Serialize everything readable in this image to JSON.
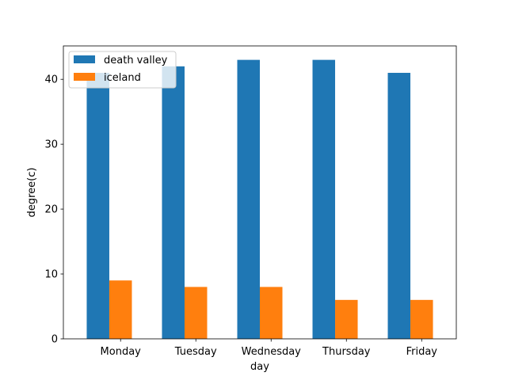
{
  "chart_data": {
    "type": "bar",
    "title": "",
    "xlabel": "day",
    "ylabel": "degree(c)",
    "categories": [
      "Monday",
      "Tuesday",
      "Wednesday",
      "Thursday",
      "Friday"
    ],
    "series": [
      {
        "name": "death valley",
        "values": [
          41,
          42,
          43,
          43,
          41
        ],
        "color": "#1f77b4"
      },
      {
        "name": "iceland",
        "values": [
          9,
          8,
          8,
          6,
          6
        ],
        "color": "#ff7f0e"
      }
    ],
    "ylim": [
      0,
      45.15
    ],
    "yticks": [
      0,
      10,
      20,
      30,
      40
    ],
    "grid": false,
    "legend_position": "upper-left"
  }
}
